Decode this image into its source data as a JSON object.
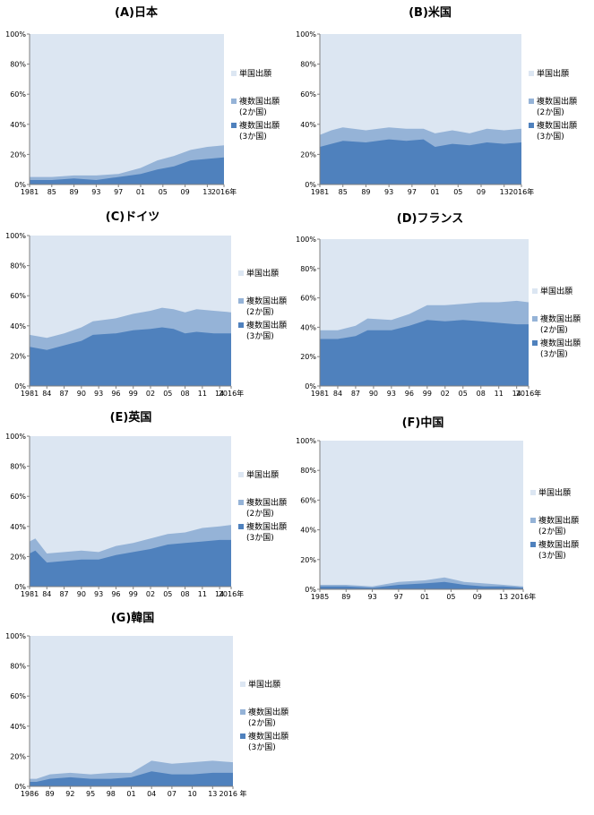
{
  "figure": {
    "legend_labels": [
      "単国出願",
      "複数国出願",
      "(2か国)",
      "複数国出願",
      "(3か国)"
    ],
    "colors": {
      "single": "#dce6f2",
      "two": "#95b3d7",
      "three": "#4f81bd"
    },
    "y_ticks": [
      "0%",
      "20%",
      "40%",
      "60%",
      "80%",
      "100%"
    ]
  },
  "chart_data": [
    {
      "type": "area",
      "title": "(A)日本",
      "x_start": 1981,
      "x_end": 2016,
      "x_tick_labels": [
        "1981",
        "85",
        "89",
        "93",
        "97",
        "01",
        "05",
        "09",
        "13",
        "2016年"
      ],
      "x_tick_years": [
        1981,
        1985,
        1989,
        1993,
        1997,
        2001,
        2005,
        2009,
        2013,
        2016
      ],
      "ylim": [
        0,
        100
      ],
      "years": [
        1981,
        1985,
        1989,
        1993,
        1997,
        2001,
        2004,
        2007,
        2010,
        2013,
        2016
      ],
      "series": [
        {
          "values": [
            3,
            3,
            4,
            3,
            5,
            7,
            10,
            12,
            16,
            17,
            18
          ]
        },
        {
          "values": [
            5,
            5,
            6,
            6,
            7,
            11,
            16,
            19,
            23,
            25,
            26
          ]
        },
        {
          "values": [
            100,
            100,
            100,
            100,
            100,
            100,
            100,
            100,
            100,
            100,
            100
          ]
        }
      ]
    },
    {
      "type": "area",
      "title": "(B)米国",
      "x_start": 1981,
      "x_end": 2016,
      "x_tick_labels": [
        "1981",
        "85",
        "89",
        "93",
        "97",
        "01",
        "05",
        "09",
        "13",
        "2016年"
      ],
      "x_tick_years": [
        1981,
        1985,
        1989,
        1993,
        1997,
        2001,
        2005,
        2009,
        2013,
        2016
      ],
      "ylim": [
        0,
        100
      ],
      "years": [
        1981,
        1983,
        1985,
        1989,
        1993,
        1996,
        1999,
        2001,
        2004,
        2007,
        2010,
        2013,
        2016
      ],
      "series": [
        {
          "values": [
            25,
            27,
            29,
            28,
            30,
            29,
            30,
            25,
            27,
            26,
            28,
            27,
            28
          ]
        },
        {
          "values": [
            33,
            36,
            38,
            36,
            38,
            37,
            37,
            34,
            36,
            34,
            37,
            36,
            37
          ]
        },
        {
          "values": [
            100,
            100,
            100,
            100,
            100,
            100,
            100,
            100,
            100,
            100,
            100,
            100,
            100
          ]
        }
      ]
    },
    {
      "type": "area",
      "title": "(C)ドイツ",
      "x_start": 1981,
      "x_end": 2016,
      "x_tick_labels": [
        "1981",
        "84",
        "87",
        "90",
        "93",
        "96",
        "99",
        "02",
        "05",
        "08",
        "11",
        "14",
        "2016年"
      ],
      "x_tick_years": [
        1981,
        1984,
        1987,
        1990,
        1993,
        1996,
        1999,
        2002,
        2005,
        2008,
        2011,
        2014,
        2016
      ],
      "ylim": [
        0,
        100
      ],
      "years": [
        1981,
        1984,
        1987,
        1990,
        1992,
        1996,
        1999,
        2002,
        2004,
        2006,
        2008,
        2010,
        2013,
        2016
      ],
      "series": [
        {
          "values": [
            26,
            24,
            27,
            30,
            34,
            35,
            37,
            38,
            39,
            38,
            35,
            36,
            35,
            35
          ]
        },
        {
          "values": [
            34,
            32,
            35,
            39,
            43,
            45,
            48,
            50,
            52,
            51,
            49,
            51,
            50,
            49
          ]
        },
        {
          "values": [
            100,
            100,
            100,
            100,
            100,
            100,
            100,
            100,
            100,
            100,
            100,
            100,
            100,
            100
          ]
        }
      ]
    },
    {
      "type": "area",
      "title": "(D)フランス",
      "x_start": 1981,
      "x_end": 2016,
      "x_tick_labels": [
        "1981",
        "84",
        "87",
        "90",
        "93",
        "96",
        "99",
        "02",
        "05",
        "08",
        "11",
        "14",
        "2016年"
      ],
      "x_tick_years": [
        1981,
        1984,
        1987,
        1990,
        1993,
        1996,
        1999,
        2002,
        2005,
        2008,
        2011,
        2014,
        2016
      ],
      "ylim": [
        0,
        100
      ],
      "years": [
        1981,
        1984,
        1987,
        1989,
        1993,
        1996,
        1999,
        2002,
        2005,
        2008,
        2011,
        2014,
        2016
      ],
      "series": [
        {
          "values": [
            32,
            32,
            34,
            38,
            38,
            41,
            45,
            44,
            45,
            44,
            43,
            42,
            42
          ]
        },
        {
          "values": [
            38,
            38,
            41,
            46,
            45,
            49,
            55,
            55,
            56,
            57,
            57,
            58,
            57
          ]
        },
        {
          "values": [
            100,
            100,
            100,
            100,
            100,
            100,
            100,
            100,
            100,
            100,
            100,
            100,
            100
          ]
        }
      ]
    },
    {
      "type": "area",
      "title": "(E)英国",
      "x_start": 1981,
      "x_end": 2016,
      "x_tick_labels": [
        "1981",
        "84",
        "87",
        "90",
        "93",
        "96",
        "99",
        "02",
        "05",
        "08",
        "11",
        "14",
        "2016年"
      ],
      "x_tick_years": [
        1981,
        1984,
        1987,
        1990,
        1993,
        1996,
        1999,
        2002,
        2005,
        2008,
        2011,
        2014,
        2016
      ],
      "ylim": [
        0,
        100
      ],
      "years": [
        1981,
        1982,
        1984,
        1987,
        1990,
        1993,
        1996,
        1999,
        2002,
        2005,
        2008,
        2011,
        2014,
        2016
      ],
      "series": [
        {
          "values": [
            22,
            24,
            16,
            17,
            18,
            18,
            21,
            23,
            25,
            28,
            29,
            30,
            31,
            31
          ]
        },
        {
          "values": [
            30,
            32,
            22,
            23,
            24,
            23,
            27,
            29,
            32,
            35,
            36,
            39,
            40,
            41
          ]
        },
        {
          "values": [
            100,
            100,
            100,
            100,
            100,
            100,
            100,
            100,
            100,
            100,
            100,
            100,
            100,
            100
          ]
        }
      ]
    },
    {
      "type": "area",
      "title": "(F)中国",
      "x_start": 1985,
      "x_end": 2016,
      "x_tick_labels": [
        "1985",
        "89",
        "93",
        "97",
        "01",
        "05",
        "09",
        "13",
        "2016年"
      ],
      "x_tick_years": [
        1985,
        1989,
        1993,
        1997,
        2001,
        2005,
        2009,
        2013,
        2016
      ],
      "ylim": [
        0,
        100
      ],
      "years": [
        1985,
        1989,
        1993,
        1997,
        2001,
        2004,
        2007,
        2010,
        2013,
        2016
      ],
      "series": [
        {
          "values": [
            2,
            2,
            1,
            3,
            4,
            5,
            3,
            2,
            2,
            1
          ]
        },
        {
          "values": [
            3,
            3,
            2,
            5,
            6,
            8,
            5,
            4,
            3,
            2
          ]
        },
        {
          "values": [
            100,
            100,
            100,
            100,
            100,
            100,
            100,
            100,
            100,
            100
          ]
        }
      ]
    },
    {
      "type": "area",
      "title": "(G)韓国",
      "x_start": 1986,
      "x_end": 2016,
      "x_tick_labels": [
        "1986",
        "89",
        "92",
        "95",
        "98",
        "01",
        "04",
        "07",
        "10",
        "13",
        "2016 年"
      ],
      "x_tick_years": [
        1986,
        1989,
        1992,
        1995,
        1998,
        2001,
        2004,
        2007,
        2010,
        2013,
        2016
      ],
      "ylim": [
        0,
        100
      ],
      "years": [
        1986,
        1987,
        1989,
        1992,
        1995,
        1998,
        2001,
        2004,
        2007,
        2010,
        2013,
        2016
      ],
      "series": [
        {
          "values": [
            3,
            3,
            5,
            6,
            5,
            5,
            6,
            10,
            8,
            8,
            9,
            9
          ]
        },
        {
          "values": [
            5,
            5,
            8,
            9,
            8,
            9,
            9,
            17,
            15,
            16,
            17,
            16
          ]
        },
        {
          "values": [
            100,
            100,
            100,
            100,
            100,
            100,
            100,
            100,
            100,
            100,
            100,
            100
          ]
        }
      ]
    }
  ]
}
